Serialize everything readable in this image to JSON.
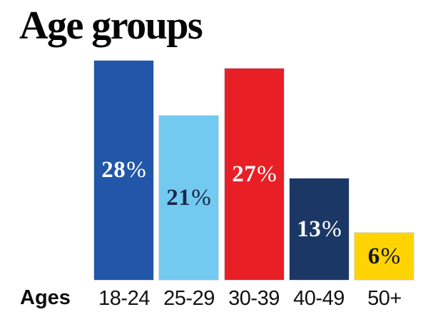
{
  "title": "Age groups",
  "chart_data": {
    "type": "bar",
    "title": "Age groups",
    "xlabel": "Ages",
    "ylabel": "",
    "categories": [
      "18-24",
      "25-29",
      "30-39",
      "40-49",
      "50+"
    ],
    "values": [
      28,
      21,
      27,
      13,
      6
    ],
    "value_labels": [
      "28%",
      "21%",
      "27%",
      "13%",
      "6%"
    ],
    "ylim": [
      0,
      30
    ],
    "grid": false,
    "legend": false,
    "bar_colors": [
      "#2156A8",
      "#73CAF0",
      "#E91F26",
      "#1B3765",
      "#FFD402"
    ],
    "value_label_colors": [
      "#FFFFFF",
      "#18294B",
      "#FFFFFF",
      "#FFFFFF",
      "#111724"
    ]
  }
}
